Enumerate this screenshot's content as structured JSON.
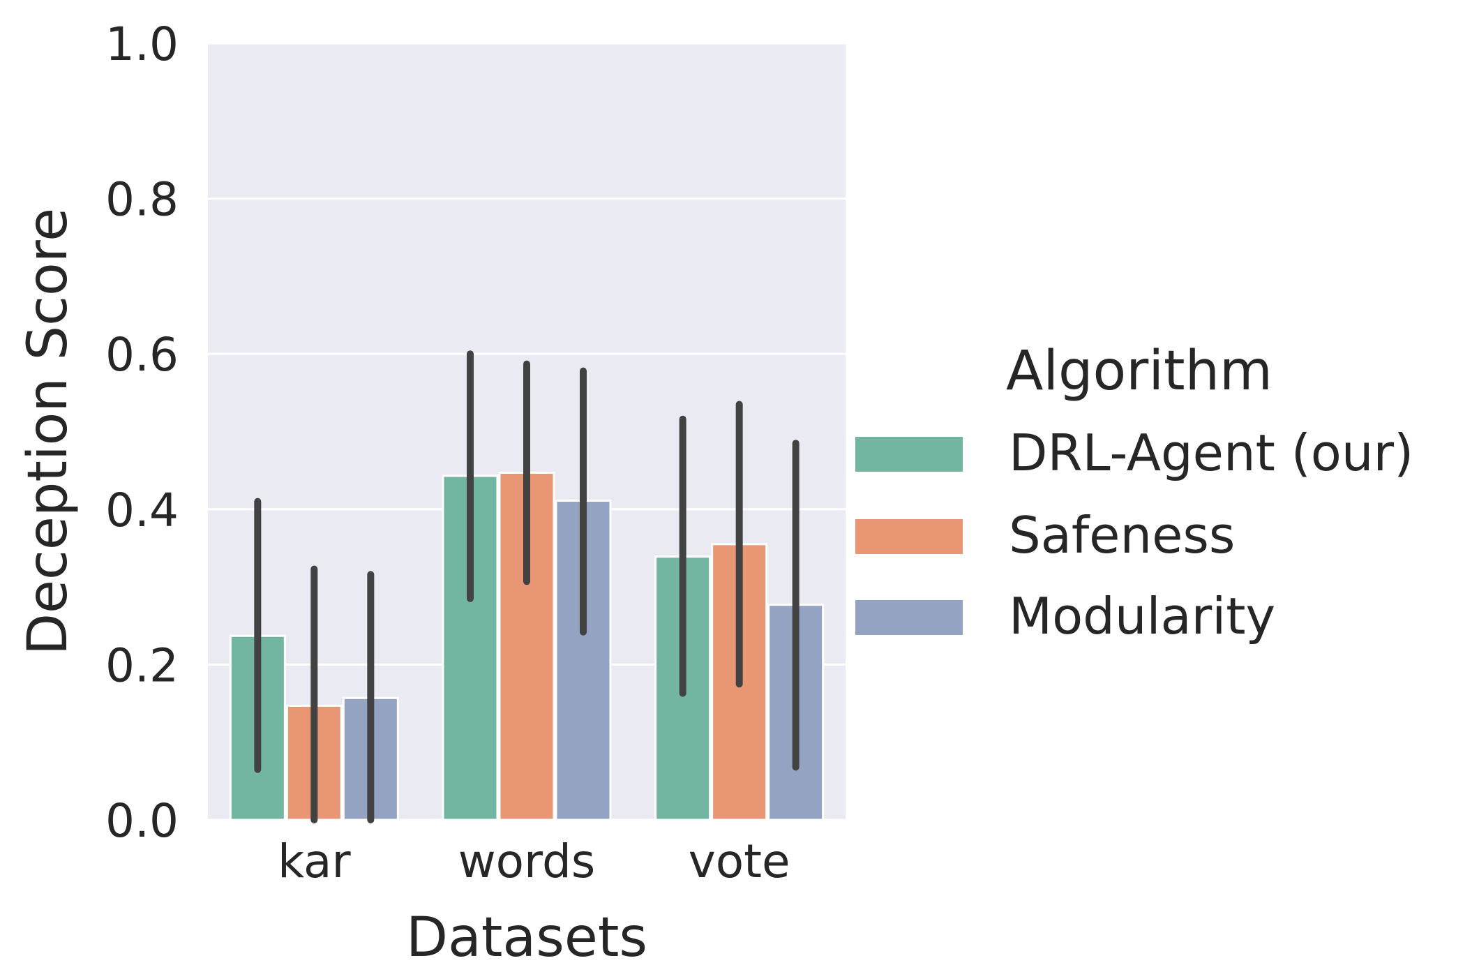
{
  "chart_data": {
    "type": "bar",
    "title": "",
    "xlabel": "Datasets",
    "ylabel": "Deception Score",
    "categories": [
      "kar",
      "words",
      "vote"
    ],
    "ylim": [
      0,
      1.0
    ],
    "yticks": [
      "0.0",
      "0.2",
      "0.4",
      "0.6",
      "0.8",
      "1.0"
    ],
    "grid": true,
    "legend": {
      "title": "Algorithm",
      "placement": "right"
    },
    "series": [
      {
        "name": "DRL-Agent (our)",
        "color": "#72b6a1",
        "values": [
          0.237,
          0.443,
          0.339
        ],
        "err_low": [
          0.065,
          0.285,
          0.163
        ],
        "err_high": [
          0.41,
          0.6,
          0.516
        ]
      },
      {
        "name": "Safeness",
        "color": "#e99675",
        "values": [
          0.147,
          0.447,
          0.355
        ],
        "err_low": [
          0.0,
          0.307,
          0.175
        ],
        "err_high": [
          0.323,
          0.587,
          0.535
        ]
      },
      {
        "name": "Modularity",
        "color": "#95a3c3",
        "values": [
          0.157,
          0.411,
          0.277
        ],
        "err_low": [
          0.0,
          0.242,
          0.068
        ],
        "err_high": [
          0.316,
          0.578,
          0.485
        ]
      }
    ]
  }
}
